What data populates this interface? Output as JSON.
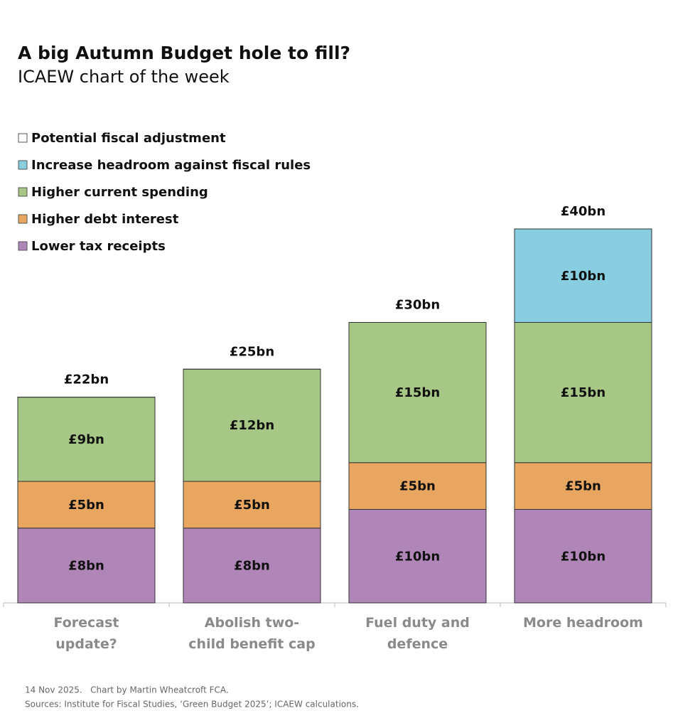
{
  "chart_data": {
    "type": "stacked-bar",
    "title": "A big Autumn Budget hole to fill?",
    "subtitle": "ICAEW chart of the week",
    "categories": [
      "Forecast update?",
      "Abolish two-child benefit cap",
      "Fuel duty and defence",
      "More headroom"
    ],
    "totals": {
      "name": "Potential fiscal adjustment",
      "color": "#ffffff",
      "values": [
        22,
        25,
        30,
        40
      ],
      "value_labels": [
        "£22bn",
        "£25bn",
        "£30bn",
        "£40bn"
      ]
    },
    "series": [
      {
        "name": "Lower tax receipts",
        "color": "#b086b9",
        "values": [
          8,
          8,
          10,
          10
        ],
        "value_labels": [
          "£8bn",
          "£8bn",
          "£10bn",
          "£10bn"
        ]
      },
      {
        "name": "Higher debt interest",
        "color": "#e8a660",
        "values": [
          5,
          5,
          5,
          5
        ],
        "value_labels": [
          "£5bn",
          "£5bn",
          "£5bn",
          "£5bn"
        ]
      },
      {
        "name": "Higher current spending",
        "color": "#a6c785",
        "values": [
          9,
          12,
          15,
          15
        ],
        "value_labels": [
          "£9bn",
          "£12bn",
          "£15bn",
          "£15bn"
        ]
      },
      {
        "name": "Increase headroom against fiscal rules",
        "color": "#88cde0",
        "values": [
          null,
          null,
          null,
          10
        ],
        "value_labels": [
          null,
          null,
          null,
          "£10bn"
        ]
      }
    ],
    "footnote": "14 Nov 2025.   Chart by Martin Wheatcroft FCA.",
    "source": "Sources: Institute for Fiscal Studies, ‘Green Budget 2025’; ICAEW calculations."
  }
}
